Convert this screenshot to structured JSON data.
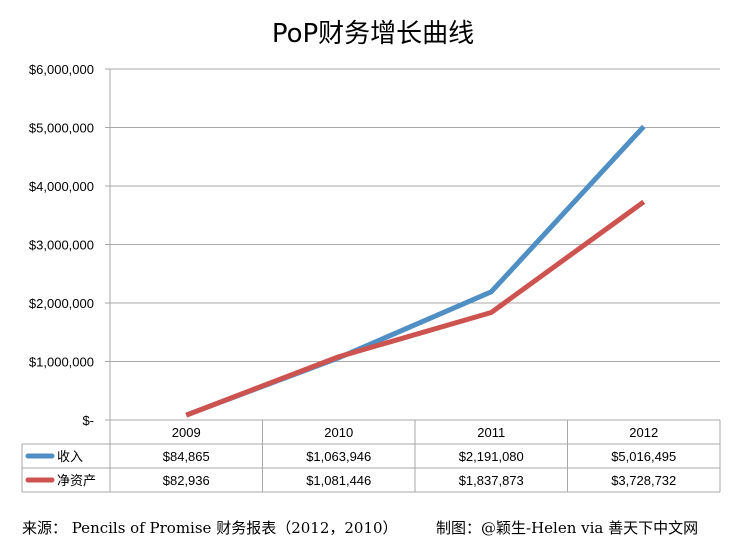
{
  "chart_data": {
    "type": "line",
    "title": "PoP财务增长曲线",
    "categories": [
      "2009",
      "2010",
      "2011",
      "2012"
    ],
    "series": [
      {
        "name": "收入",
        "values": [
          84865,
          1063946,
          2191080,
          5016495
        ],
        "labels": [
          "$84,865",
          "$1,063,946",
          "$2,191,080",
          "$5,016,495"
        ]
      },
      {
        "name": "净资产",
        "values": [
          82936,
          1081446,
          1837873,
          3728732
        ],
        "labels": [
          "$82,936",
          "$1,081,446",
          "$1,837,873",
          "$3,728,732"
        ]
      }
    ],
    "ylim": [
      0,
      6000000
    ],
    "yticks": [
      0,
      1000000,
      2000000,
      3000000,
      4000000,
      5000000,
      6000000
    ],
    "ytick_labels": [
      "$-",
      "$1,000,000",
      "$2,000,000",
      "$3,000,000",
      "$4,000,000",
      "$5,000,000",
      "$6,000,000"
    ],
    "grid": true,
    "legend": "data-table",
    "colors": [
      "#4f8fc4",
      "#cd5350"
    ]
  },
  "footer": {
    "source": "来源： Pencils of Promise 财务报表（2012，2010）",
    "maker": "制图：@颖生-Helen via 善天下中文网"
  }
}
